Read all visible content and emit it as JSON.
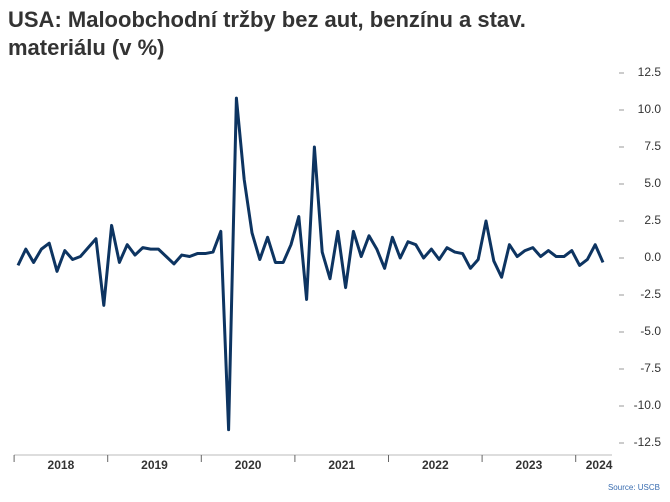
{
  "chart_data": {
    "type": "line",
    "title": "USA: Maloobchodní tržby bez aut, benzínu a stav. materiálu (v %)",
    "source": "Source: USCB",
    "categories": [
      null,
      null,
      null,
      null,
      null,
      "2018",
      null,
      null,
      null,
      null,
      null,
      null,
      null,
      null,
      null,
      null,
      null,
      "2019",
      null,
      null,
      null,
      null,
      null,
      null,
      null,
      null,
      null,
      null,
      null,
      "2020",
      null,
      null,
      null,
      null,
      null,
      null,
      null,
      null,
      null,
      null,
      null,
      "2021",
      null,
      null,
      null,
      null,
      null,
      null,
      null,
      null,
      null,
      null,
      null,
      "2022",
      null,
      null,
      null,
      null,
      null,
      null,
      null,
      null,
      null,
      null,
      null,
      "2023",
      null,
      null,
      null,
      null,
      null,
      null,
      null,
      null,
      "2024",
      null
    ],
    "series": [
      {
        "name": "Maloobchodní tržby",
        "color": "#0d3461",
        "values": [
          -0.5,
          0.6,
          -0.3,
          0.6,
          1.0,
          -0.9,
          0.5,
          -0.1,
          0.1,
          0.7,
          1.3,
          -3.2,
          2.2,
          -0.3,
          0.9,
          0.2,
          0.7,
          0.6,
          0.6,
          0.1,
          -0.4,
          0.2,
          0.1,
          0.3,
          0.3,
          0.4,
          1.8,
          -11.6,
          10.8,
          5.3,
          1.7,
          -0.1,
          1.4,
          -0.3,
          -0.3,
          0.9,
          2.8,
          -2.8,
          7.5,
          0.4,
          -1.4,
          1.8,
          -2.0,
          1.8,
          0.1,
          1.5,
          0.6,
          -0.7,
          1.4,
          0.0,
          1.1,
          0.9,
          0.0,
          0.6,
          -0.1,
          0.7,
          0.4,
          0.3,
          -0.7,
          -0.1,
          2.5,
          -0.2,
          -1.3,
          0.9,
          0.1,
          0.5,
          0.7,
          0.1,
          0.5,
          0.1,
          0.1,
          0.5,
          -0.5,
          -0.1,
          0.9,
          -0.3
        ]
      }
    ],
    "ylim": [
      -12.5,
      12.5
    ],
    "yticks": [
      -12.5,
      -10.0,
      -7.5,
      -5.0,
      -2.5,
      0.0,
      2.5,
      5.0,
      7.5,
      10.0,
      12.5
    ]
  }
}
